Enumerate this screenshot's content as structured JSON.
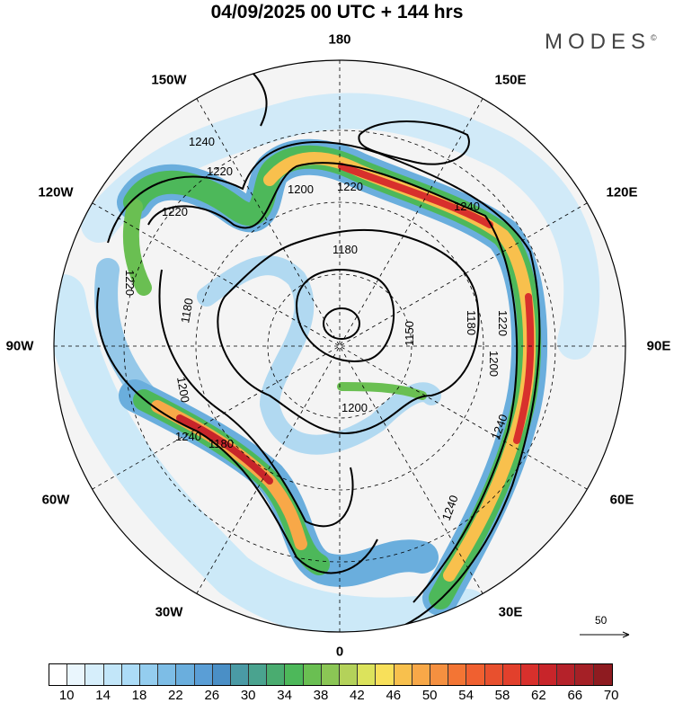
{
  "title": "04/09/2025  00 UTC  + 144 hrs",
  "logo": {
    "text": "MODES",
    "mark": "©"
  },
  "longitude_labels": {
    "n180": "180",
    "e150": "150E",
    "e120": "120E",
    "e90": "90E",
    "e60": "60E",
    "e30": "30E",
    "zero": "0",
    "w30": "30W",
    "w60": "60W",
    "w90": "90W",
    "w120": "120W",
    "w150": "150W"
  },
  "contour_labels": [
    "1240",
    "1220",
    "1200",
    "1180",
    "1220",
    "1240",
    "1220",
    "1180",
    "1150",
    "1200",
    "1180",
    "1240",
    "1200",
    "1180",
    "1220",
    "1240",
    "1240",
    "1200",
    "1220"
  ],
  "vector_scale": {
    "label": "50"
  },
  "colorbar": {
    "ticks": [
      "10",
      "14",
      "18",
      "22",
      "26",
      "30",
      "34",
      "38",
      "42",
      "46",
      "50",
      "54",
      "58",
      "62",
      "66",
      "70"
    ],
    "colors": [
      "#ffffff",
      "#eaf6fd",
      "#d6eefb",
      "#c2e6f9",
      "#acdcf7",
      "#94cdef",
      "#7dbde6",
      "#6aaedd",
      "#5a9ed6",
      "#4a8fc6",
      "#4a9aa5",
      "#4aa38f",
      "#4aac70",
      "#4db85a",
      "#6abf52",
      "#8bc655",
      "#b4d25a",
      "#dce35c",
      "#f8e05a",
      "#f8c04d",
      "#f8a848",
      "#f59040",
      "#f37534",
      "#f06030",
      "#e8502e",
      "#e2402c",
      "#d8302c",
      "#c8252a",
      "#b5222a",
      "#a52026",
      "#8e1b20"
    ]
  }
}
